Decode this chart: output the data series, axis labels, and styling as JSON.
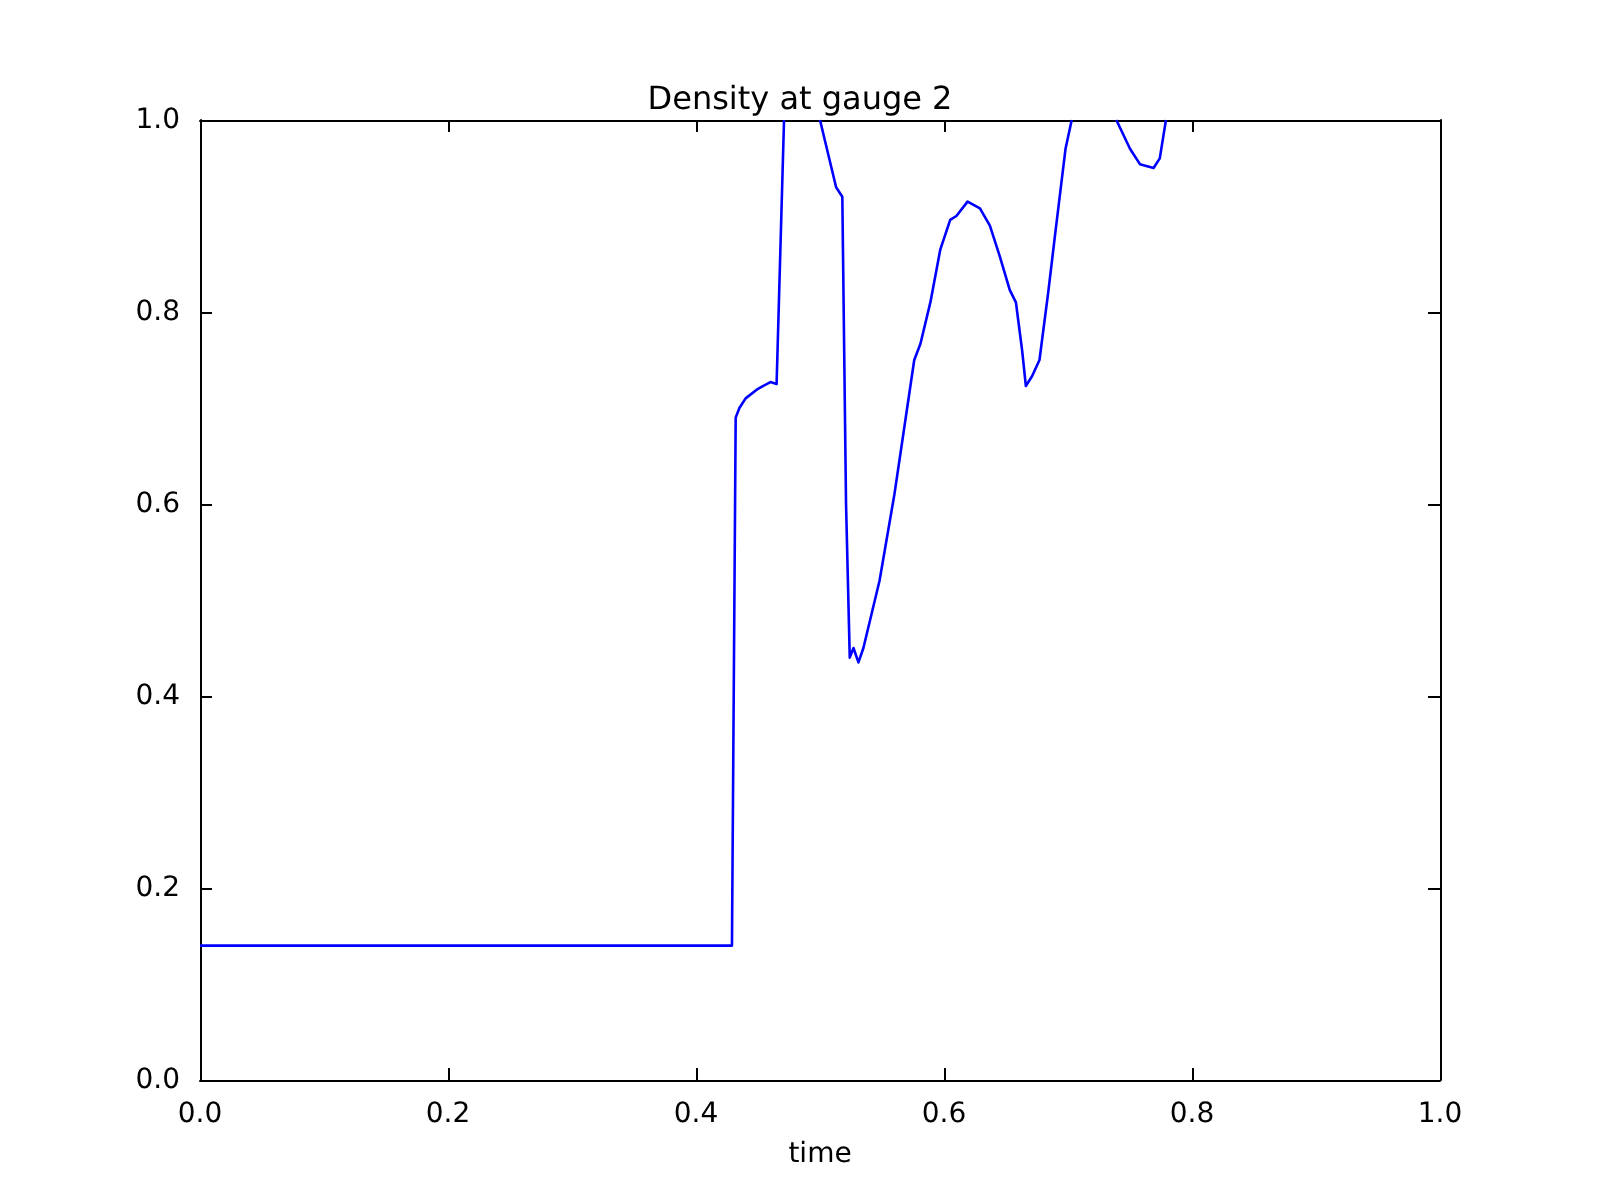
{
  "chart_data": {
    "type": "line",
    "title": "Density at gauge 2",
    "xlabel": "time",
    "xlim": [
      0,
      1
    ],
    "ylim": [
      0,
      1
    ],
    "xticks": [
      {
        "value": 0,
        "label": "0.0"
      },
      {
        "value": 0.2,
        "label": "0.2"
      },
      {
        "value": 0.4,
        "label": "0.4"
      },
      {
        "value": 0.6,
        "label": "0.6"
      },
      {
        "value": 0.8,
        "label": "0.8"
      },
      {
        "value": 1,
        "label": "1.0"
      }
    ],
    "yticks": [
      {
        "value": 0,
        "label": "0.0"
      },
      {
        "value": 0.2,
        "label": "0.2"
      },
      {
        "value": 0.4,
        "label": "0.4"
      },
      {
        "value": 0.6,
        "label": "0.6"
      },
      {
        "value": 0.8,
        "label": "0.8"
      },
      {
        "value": 1,
        "label": "1.0"
      }
    ],
    "marker": "none",
    "line_style": "solid",
    "series": [
      {
        "color": "#0000ff",
        "x": [
          0,
          0.2,
          0.429,
          0.432,
          0.435,
          0.44,
          0.45,
          0.46,
          0.465,
          0.471,
          0.48,
          0.5,
          0.513,
          0.518,
          0.521,
          0.524,
          0.527,
          0.531,
          0.535,
          0.548,
          0.56,
          0.568,
          0.576,
          0.581,
          0.589,
          0.597,
          0.605,
          0.61,
          0.619,
          0.629,
          0.637,
          0.645,
          0.653,
          0.658,
          0.663,
          0.666,
          0.671,
          0.677,
          0.684,
          0.69,
          0.698,
          0.703,
          0.72,
          0.739,
          0.75,
          0.758,
          0.769,
          0.774,
          0.779
        ],
        "values": [
          0.14,
          0.14,
          0.14,
          0.69,
          0.7,
          0.71,
          0.72,
          0.727,
          0.725,
          1.0,
          null,
          1.0,
          0.93,
          0.92,
          0.6,
          0.44,
          0.45,
          0.435,
          0.45,
          0.52,
          0.61,
          0.68,
          0.75,
          0.767,
          0.81,
          0.865,
          0.896,
          0.9,
          0.915,
          0.908,
          0.89,
          0.858,
          0.823,
          0.81,
          0.76,
          0.723,
          0.733,
          0.75,
          0.82,
          0.885,
          0.97,
          1.0,
          null,
          1.0,
          0.97,
          0.954,
          0.95,
          0.96,
          1.0
        ]
      }
    ]
  }
}
